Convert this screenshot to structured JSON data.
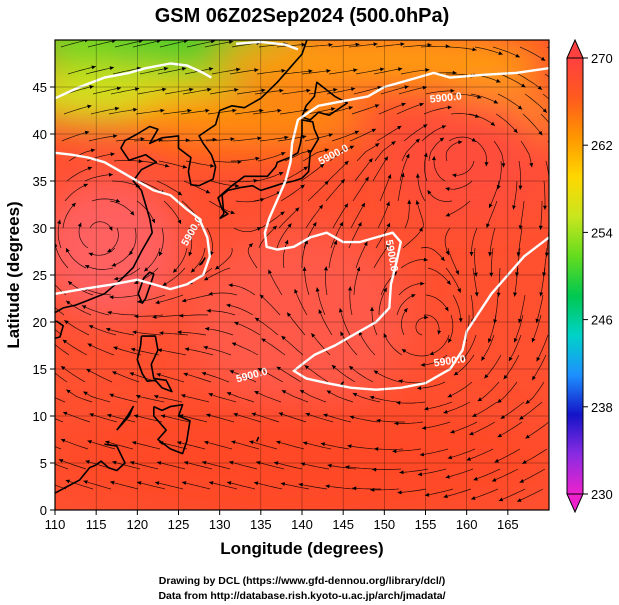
{
  "chart_data": {
    "type": "heatmap",
    "title": "GSM 06Z02Sep2024 (500.0hPa)",
    "xlabel": "Longitude (degrees)",
    "ylabel": "Latitude  (degrees)",
    "xlim": [
      110,
      170
    ],
    "ylim": [
      0,
      50
    ],
    "x_ticks": [
      "110",
      "115",
      "120",
      "125",
      "130",
      "135",
      "140",
      "145",
      "150",
      "155",
      "160",
      "165"
    ],
    "y_ticks": [
      "0",
      "5",
      "10",
      "15",
      "20",
      "25",
      "30",
      "35",
      "40",
      "45"
    ],
    "colorbar": {
      "min": 230,
      "max": 270,
      "ticks": [
        "230",
        "238",
        "246",
        "254",
        "262",
        "270"
      ],
      "colors": [
        "#ee22cc",
        "#8a2be2",
        "#1414c8",
        "#1e90ff",
        "#00d2c8",
        "#00c850",
        "#64dc1e",
        "#c8e61e",
        "#ffd700",
        "#ff9600",
        "#ff5a1e",
        "#ff4040"
      ]
    },
    "contour_labels": [
      "5900.0",
      "5900.0",
      "5900.0",
      "5900.0",
      "5900.0",
      "5900.0"
    ],
    "contour_value": 5900,
    "vortices": [
      {
        "lon": 115,
        "lat": 29.5
      },
      {
        "lon": 159.5,
        "lat": 38
      },
      {
        "lon": 155,
        "lat": 19
      }
    ],
    "grid": true
  },
  "footer": {
    "line1": "Drawing by DCL (https://www.gfd-dennou.org/library/dcl/)",
    "line2": "Data from http://database.rish.kyoto-u.ac.jp/arch/jmadata/"
  }
}
